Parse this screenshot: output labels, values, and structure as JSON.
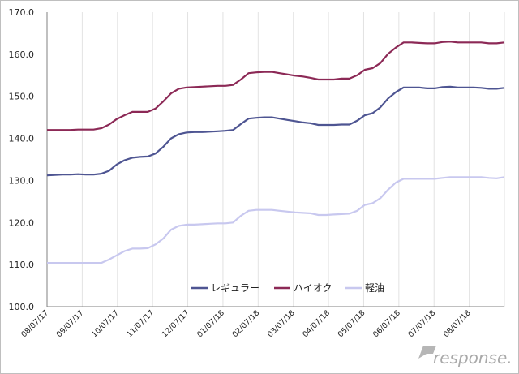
{
  "chart_data": {
    "type": "line",
    "title": "",
    "xlabel": "",
    "ylabel": "",
    "ylim": [
      100,
      170
    ],
    "yticks": [
      "100.0",
      "110.0",
      "120.0",
      "130.0",
      "140.0",
      "150.0",
      "160.0",
      "170.0"
    ],
    "x_tick_labels": [
      "08/07/17",
      "09/07/17",
      "10/07/17",
      "11/07/17",
      "12/07/17",
      "01/07/18",
      "02/07/18",
      "03/07/18",
      "04/07/18",
      "05/07/18",
      "06/07/18",
      "07/07/18",
      "08/07/18"
    ],
    "grid": "vertical",
    "legend_position": "bottom-center",
    "series": [
      {
        "name": "レギュラー",
        "color": "#4e5592",
        "values": [
          131.2,
          131.3,
          131.4,
          131.4,
          131.5,
          131.4,
          131.4,
          131.6,
          132.3,
          133.8,
          134.8,
          135.4,
          135.6,
          135.7,
          136.4,
          138.0,
          140.0,
          141.0,
          141.4,
          141.5,
          141.5,
          141.6,
          141.7,
          141.8,
          142.0,
          143.4,
          144.7,
          144.9,
          145.0,
          145.0,
          144.7,
          144.4,
          144.1,
          143.8,
          143.6,
          143.2,
          143.2,
          143.2,
          143.3,
          143.3,
          144.2,
          145.5,
          146.0,
          147.4,
          149.5,
          151.0,
          152.1,
          152.1,
          152.1,
          151.9,
          151.9,
          152.2,
          152.3,
          152.1,
          152.1,
          152.1,
          152.0,
          151.8,
          151.8,
          152.0
        ]
      },
      {
        "name": "ハイオク",
        "color": "#8c2956",
        "values": [
          142.0,
          142.0,
          142.0,
          142.0,
          142.1,
          142.1,
          142.1,
          142.4,
          143.3,
          144.6,
          145.5,
          146.3,
          146.3,
          146.3,
          147.1,
          148.8,
          150.7,
          151.8,
          152.1,
          152.2,
          152.3,
          152.4,
          152.5,
          152.5,
          152.7,
          154.0,
          155.5,
          155.7,
          155.8,
          155.8,
          155.5,
          155.2,
          154.9,
          154.7,
          154.4,
          154.0,
          154.0,
          154.0,
          154.2,
          154.2,
          155.0,
          156.3,
          156.7,
          157.9,
          160.1,
          161.6,
          162.8,
          162.8,
          162.7,
          162.6,
          162.6,
          162.9,
          163.0,
          162.8,
          162.8,
          162.8,
          162.8,
          162.6,
          162.6,
          162.8
        ]
      },
      {
        "name": "軽油",
        "color": "#c8c8ef",
        "values": [
          110.4,
          110.4,
          110.4,
          110.4,
          110.4,
          110.4,
          110.4,
          110.4,
          111.2,
          112.2,
          113.2,
          113.8,
          113.8,
          113.9,
          114.8,
          116.2,
          118.3,
          119.2,
          119.5,
          119.5,
          119.6,
          119.7,
          119.8,
          119.8,
          120.0,
          121.6,
          122.8,
          123.0,
          123.0,
          123.0,
          122.8,
          122.6,
          122.4,
          122.3,
          122.2,
          121.8,
          121.8,
          121.9,
          122.0,
          122.1,
          122.8,
          124.2,
          124.6,
          125.8,
          127.8,
          129.5,
          130.4,
          130.4,
          130.4,
          130.4,
          130.4,
          130.6,
          130.8,
          130.8,
          130.8,
          130.8,
          130.8,
          130.6,
          130.5,
          130.8
        ]
      }
    ]
  },
  "watermark": {
    "text": "response.",
    "color": "#a9a9a9"
  }
}
